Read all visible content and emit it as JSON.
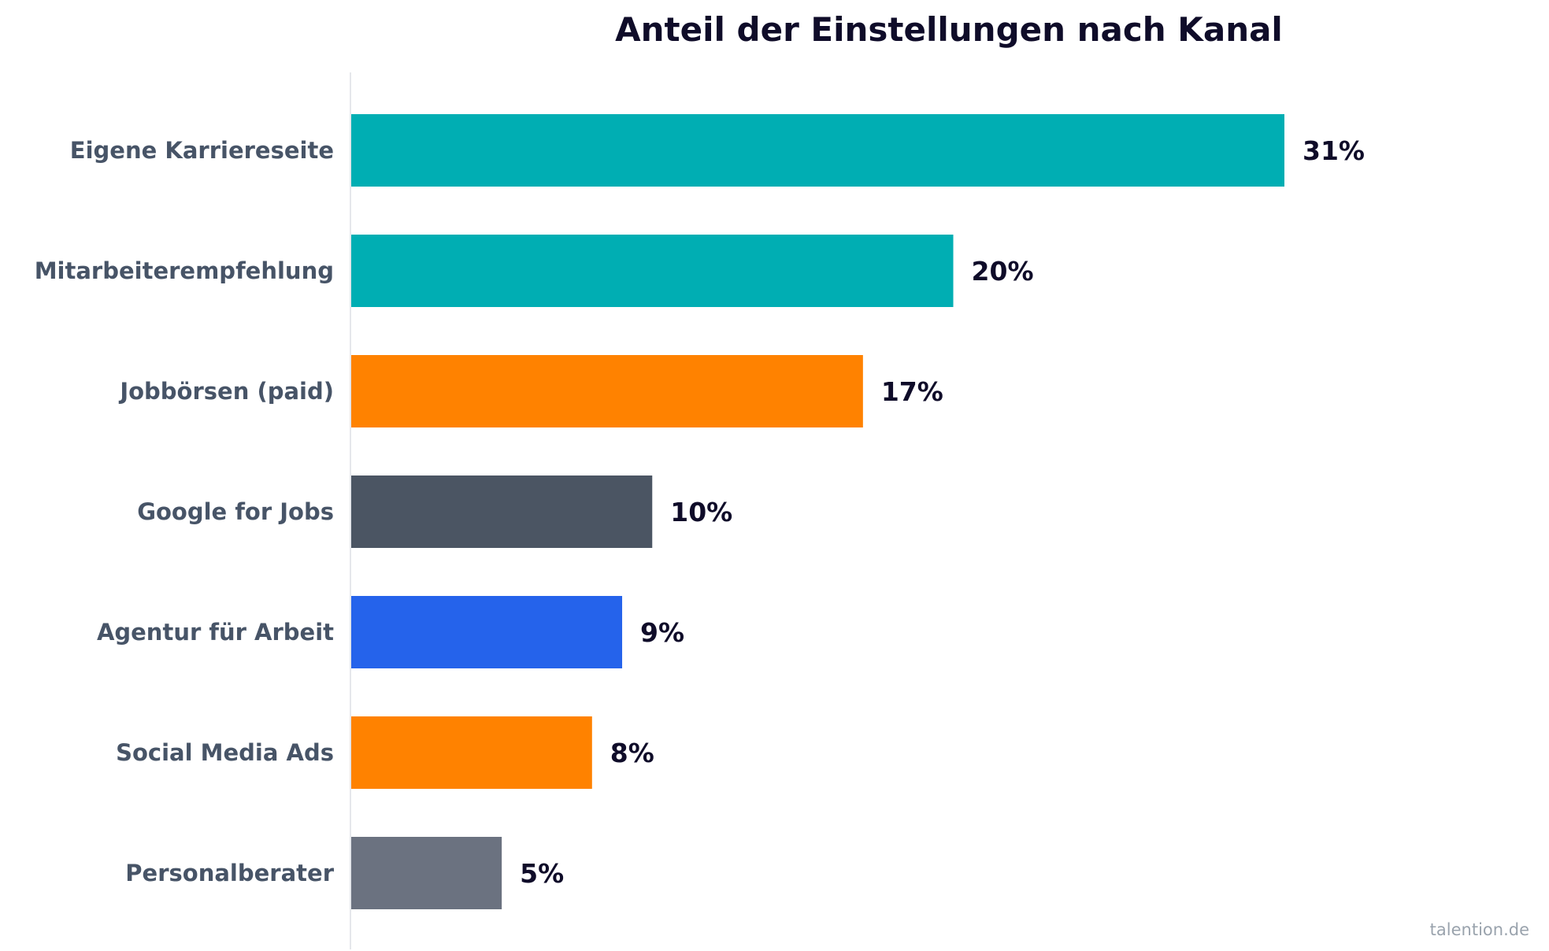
{
  "chart_data": {
    "type": "bar",
    "orientation": "horizontal",
    "title": "Anteil der Einstellungen nach Kanal",
    "categories": [
      "Eigene Karriereseite",
      "Mitarbeiterempfehlung",
      "Jobbörsen (paid)",
      "Google for Jobs",
      "Agentur für Arbeit",
      "Social Media Ads",
      "Personalberater"
    ],
    "values": [
      31,
      20,
      17,
      10,
      9,
      8,
      5
    ],
    "value_labels": [
      "31%",
      "20%",
      "17%",
      "10%",
      "9%",
      "8%",
      "5%"
    ],
    "colors": [
      "#00aeb3",
      "#00aeb3",
      "#ff8200",
      "#4b5563",
      "#2563eb",
      "#ff8200",
      "#6b7280"
    ],
    "xlabel": "",
    "ylabel": "",
    "xlim": [
      0,
      38
    ],
    "grid": false,
    "legend": "none"
  },
  "source": "talention.de",
  "colors": {
    "title": "#0f0c29",
    "category_label": "#475467",
    "value_label": "#0f0c29",
    "axis_line": "#e5e7eb",
    "source": "#9aa3ad"
  }
}
